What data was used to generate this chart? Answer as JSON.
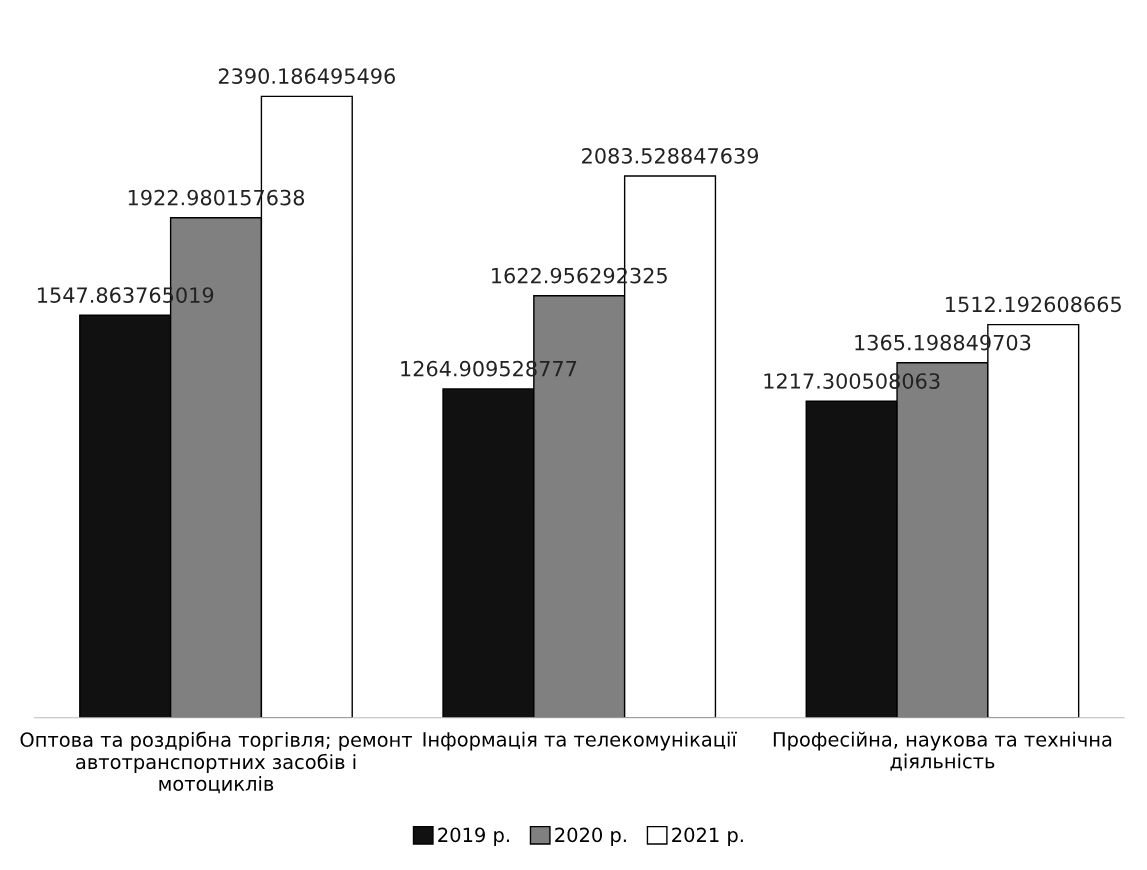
{
  "chart_data": {
    "type": "bar",
    "categories": [
      "Оптова та роздрібна торгівля; ремонт автотранспортних засобів і мотоциклів",
      "Інформація та телекомунікації",
      "Професійна, наукова та технічна діяльність"
    ],
    "series": [
      {
        "name": "2019 р.",
        "color": "#111111",
        "values": [
          1547.863765019,
          1264.909528777,
          1217.300508063
        ]
      },
      {
        "name": "2020 р.",
        "color": "#808080",
        "values": [
          1922.980157638,
          1622.956292325,
          1365.198849703
        ]
      },
      {
        "name": "2021 р.",
        "color": "#ffffff",
        "values": [
          2390.186495496,
          2083.528847639,
          1512.192608665
        ]
      }
    ],
    "data_labels": true,
    "legend": "bottom",
    "grid": false,
    "tick_labels": "x"
  }
}
